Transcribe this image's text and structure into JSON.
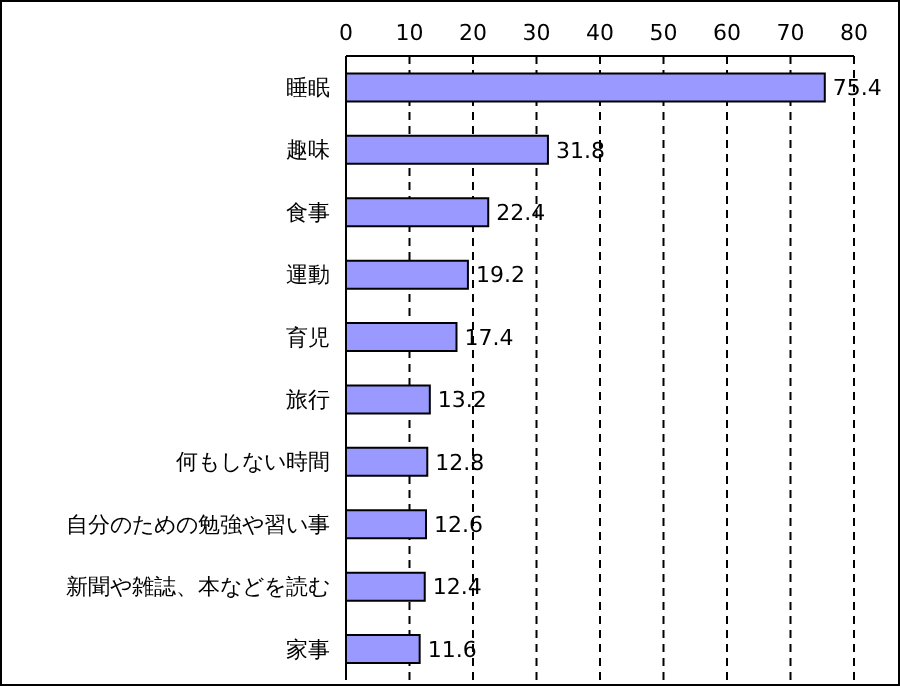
{
  "chart_data": {
    "type": "bar",
    "orientation": "horizontal",
    "categories": [
      "睡眠",
      "趣味",
      "食事",
      "運動",
      "育児",
      "旅行",
      "何もしない時間",
      "自分のための勉強や習い事",
      "新聞や雑誌、本などを読む",
      "家事"
    ],
    "values": [
      75.4,
      31.8,
      22.4,
      19.2,
      17.4,
      13.2,
      12.8,
      12.6,
      12.4,
      11.6
    ],
    "color": "#9999ff",
    "xlim": [
      0,
      80
    ],
    "xticks": [
      0,
      10,
      20,
      30,
      40,
      50,
      60,
      70,
      80
    ],
    "grid": "x",
    "data_labels": true
  }
}
